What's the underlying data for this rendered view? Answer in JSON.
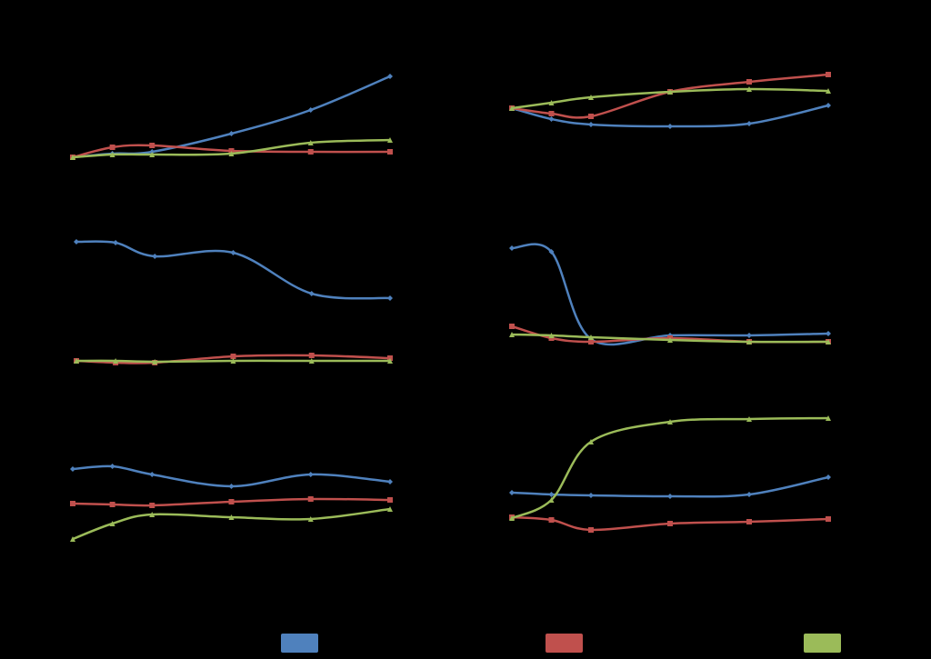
{
  "chart_data": [
    {
      "type": "line",
      "x": [
        0,
        1,
        2,
        4,
        6,
        8
      ],
      "ylim": [
        0,
        120
      ],
      "series": [
        {
          "color": "#4f81bd",
          "values": [
            7,
            11,
            13,
            33,
            59,
            96
          ]
        },
        {
          "color": "#c0504d",
          "values": [
            7,
            18,
            20,
            14,
            13,
            13
          ]
        },
        {
          "color": "#9bbb59",
          "values": [
            7,
            10,
            10,
            11,
            23,
            26
          ]
        }
      ]
    },
    {
      "type": "line",
      "x": [
        0,
        1,
        2,
        4,
        6,
        8
      ],
      "ylim": [
        0,
        120
      ],
      "series": [
        {
          "color": "#4f81bd",
          "values": [
            61,
            49,
            43,
            41,
            44,
            64
          ]
        },
        {
          "color": "#c0504d",
          "values": [
            61,
            55,
            52,
            79,
            90,
            98
          ]
        },
        {
          "color": "#9bbb59",
          "values": [
            61,
            67,
            73,
            79,
            82,
            80
          ]
        }
      ]
    },
    {
      "type": "line",
      "x": [
        0,
        1,
        2,
        4,
        6,
        8
      ],
      "ylim": [
        0,
        160
      ],
      "series": [
        {
          "color": "#4f81bd",
          "values": [
            144,
            143,
            128,
            132,
            87,
            82
          ]
        },
        {
          "color": "#c0504d",
          "values": [
            13,
            11,
            11,
            18,
            19,
            16
          ]
        },
        {
          "color": "#9bbb59",
          "values": [
            13,
            13,
            12,
            13,
            13,
            13
          ]
        }
      ]
    },
    {
      "type": "line",
      "x": [
        0,
        1,
        2,
        4,
        6,
        8
      ],
      "ylim": [
        0,
        160
      ],
      "series": [
        {
          "color": "#4f81bd",
          "values": [
            137,
            133,
            37,
            41,
            41,
            43
          ]
        },
        {
          "color": "#c0504d",
          "values": [
            51,
            38,
            34,
            38,
            34,
            34
          ]
        },
        {
          "color": "#9bbb59",
          "values": [
            42,
            41,
            39,
            36,
            34,
            34
          ]
        }
      ]
    },
    {
      "type": "line",
      "x": [
        0,
        1,
        2,
        4,
        6,
        8
      ],
      "ylim": [
        0,
        160
      ],
      "series": [
        {
          "color": "#4f81bd",
          "values": [
            104,
            107,
            98,
            85,
            98,
            90
          ]
        },
        {
          "color": "#c0504d",
          "values": [
            66,
            65,
            64,
            68,
            71,
            70
          ]
        },
        {
          "color": "#9bbb59",
          "values": [
            27,
            44,
            54,
            51,
            49,
            60
          ]
        }
      ]
    },
    {
      "type": "line",
      "x": [
        0,
        1,
        2,
        4,
        6,
        8
      ],
      "ylim": [
        0,
        170
      ],
      "series": [
        {
          "color": "#4f81bd",
          "values": [
            78,
            76,
            75,
            74,
            76,
            95
          ]
        },
        {
          "color": "#c0504d",
          "values": [
            51,
            48,
            37,
            44,
            46,
            49
          ]
        },
        {
          "color": "#9bbb59",
          "values": [
            50,
            70,
            134,
            156,
            159,
            160
          ]
        }
      ]
    }
  ]
}
